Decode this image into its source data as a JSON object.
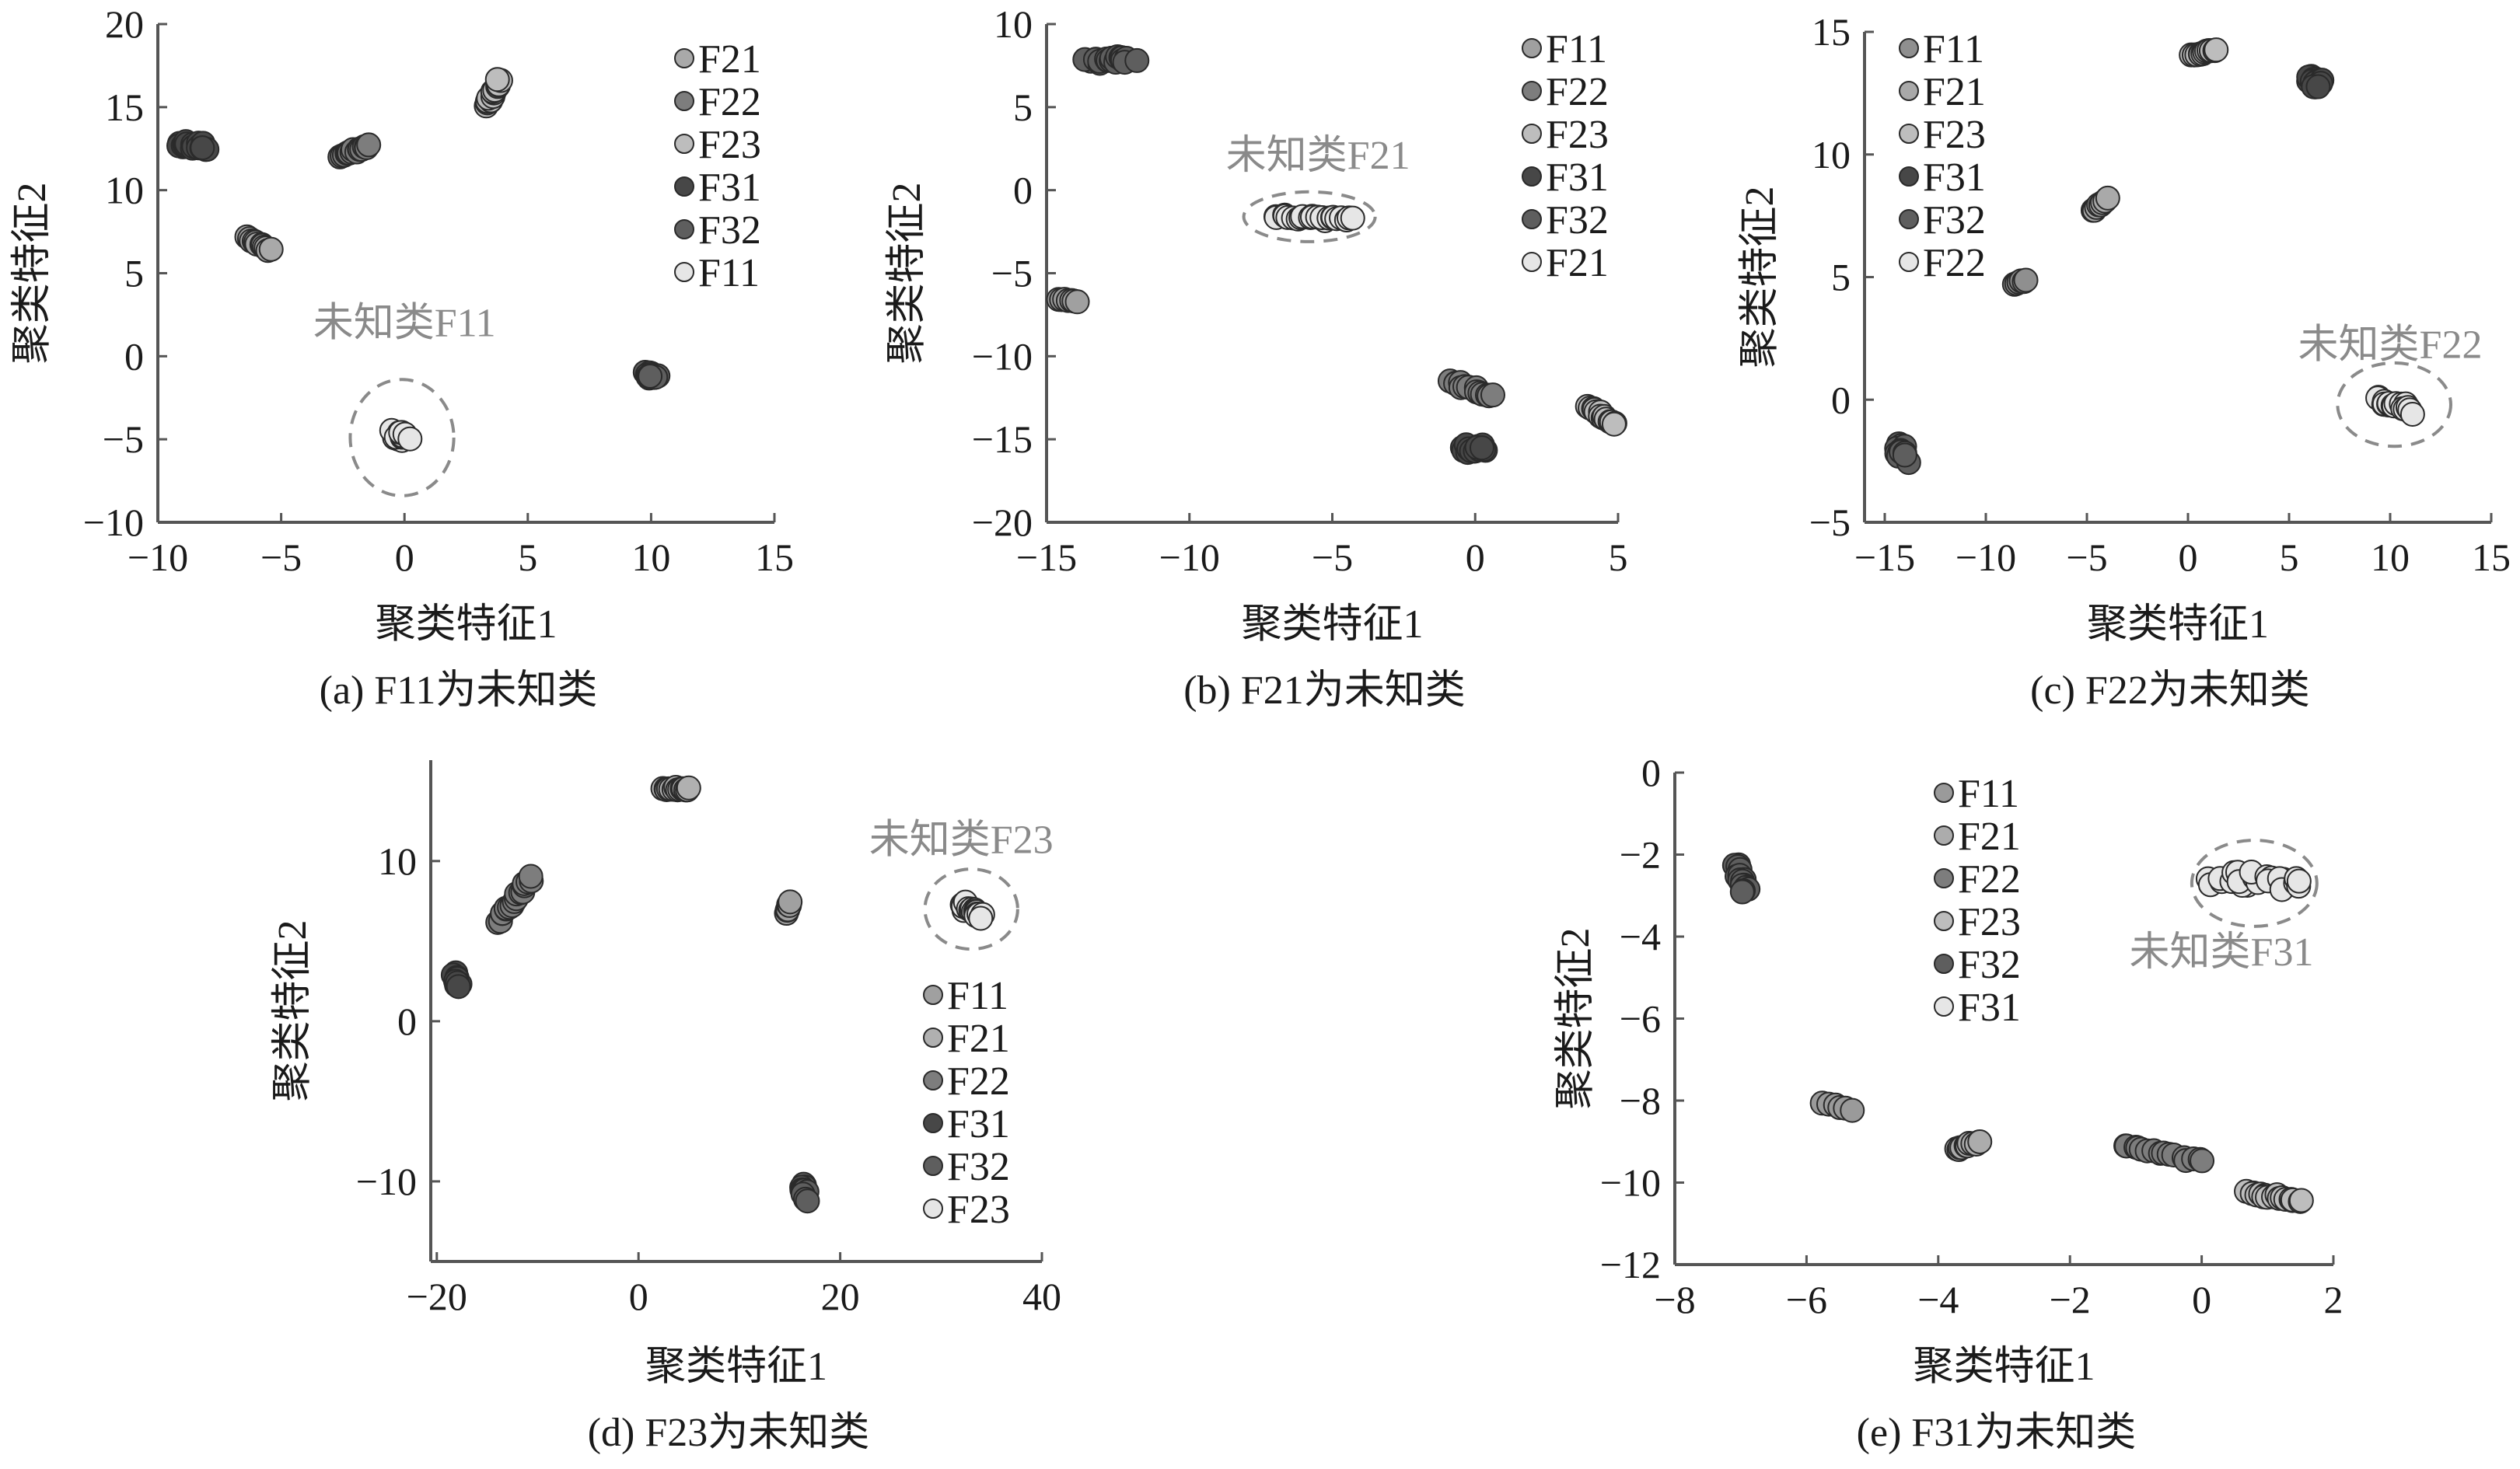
{
  "chart_data": [
    {
      "type": "scatter",
      "caption": "(a)  F11为未知类",
      "xlabel": "聚类特征1",
      "ylabel": "聚类特征2",
      "xlim": [
        -10,
        15
      ],
      "ylim": [
        -10,
        20
      ],
      "xticks": [
        -10,
        -5,
        0,
        5,
        10,
        15
      ],
      "yticks": [
        -10,
        -5,
        0,
        5,
        10,
        15,
        20
      ],
      "legend_placement": "top-right",
      "annotation": {
        "text": "未知类F11",
        "at": [
          0,
          1.2
        ],
        "ellipse_center": [
          -0.1,
          -4.9
        ],
        "ellipse_radii": [
          2.1,
          3.5
        ]
      },
      "series": [
        {
          "name": "F21",
          "color": "#a9a9a9",
          "from": [
            -6.4,
            7.1
          ],
          "to": [
            -5.4,
            6.4
          ],
          "jitter": 0.15,
          "n": 12
        },
        {
          "name": "F22",
          "color": "#7d7d7d",
          "from": [
            -2.6,
            12.0
          ],
          "to": [
            -1.4,
            12.7
          ],
          "jitter": 0.15,
          "n": 16
        },
        {
          "name": "F23",
          "color": "#bdbdbd",
          "from": [
            3.3,
            15.1
          ],
          "to": [
            3.9,
            16.6
          ],
          "jitter": 0.2,
          "n": 14
        },
        {
          "name": "F31",
          "color": "#474747",
          "from": [
            -9.2,
            12.8
          ],
          "to": [
            -8.0,
            12.6
          ],
          "jitter": 0.25,
          "n": 20
        },
        {
          "name": "F32",
          "color": "#5e5e5e",
          "from": [
            10.0,
            -1.1
          ],
          "to": [
            10.0,
            -1.2
          ],
          "jitter": 0.3,
          "n": 18
        },
        {
          "name": "F11",
          "color": "#e6e6e6",
          "from": [
            -0.3,
            -4.7
          ],
          "to": [
            0.1,
            -5.0
          ],
          "jitter": 0.45,
          "n": 20
        }
      ]
    },
    {
      "type": "scatter",
      "caption": "(b)  F21为未知类",
      "xlabel": "聚类特征1",
      "ylabel": "聚类特征2",
      "xlim": [
        -15,
        5
      ],
      "ylim": [
        -20,
        10
      ],
      "xticks": [
        -15,
        -10,
        -5,
        0,
        5
      ],
      "yticks": [
        -20,
        -15,
        -10,
        -5,
        0,
        5,
        10
      ],
      "legend_placement": "top-right",
      "annotation": {
        "text": "未知类F21",
        "at": [
          -5.5,
          1.3
        ],
        "ellipse_center": [
          -5.8,
          -1.6
        ],
        "ellipse_radii": [
          2.3,
          1.5
        ]
      },
      "series": [
        {
          "name": "F11",
          "color": "#a0a0a0",
          "from": [
            -14.6,
            -6.6
          ],
          "to": [
            -13.9,
            -6.7
          ],
          "jitter": 0.08,
          "n": 7
        },
        {
          "name": "F22",
          "color": "#7d7d7d",
          "from": [
            -0.9,
            -11.5
          ],
          "to": [
            0.6,
            -12.4
          ],
          "jitter": 0.18,
          "n": 16
        },
        {
          "name": "F23",
          "color": "#bdbdbd",
          "from": [
            4.0,
            -13.0
          ],
          "to": [
            4.9,
            -14.1
          ],
          "jitter": 0.12,
          "n": 14
        },
        {
          "name": "F31",
          "color": "#474747",
          "from": [
            -0.4,
            -15.5
          ],
          "to": [
            0.2,
            -15.6
          ],
          "jitter": 0.35,
          "n": 20
        },
        {
          "name": "F32",
          "color": "#5e5e5e",
          "from": [
            -13.5,
            7.8
          ],
          "to": [
            -12.0,
            7.9
          ],
          "jitter": 0.3,
          "n": 20
        },
        {
          "name": "F21",
          "color": "#e6e6e6",
          "from": [
            -7.0,
            -1.6
          ],
          "to": [
            -4.3,
            -1.7
          ],
          "jitter": 0.2,
          "n": 24
        }
      ]
    },
    {
      "type": "scatter",
      "caption": "(c)  F22为未知类",
      "xlabel": "聚类特征1",
      "ylabel": "聚类特征2",
      "xlim": [
        -16,
        15
      ],
      "ylim": [
        -5,
        15
      ],
      "xticks": [
        -15,
        -10,
        -5,
        0,
        5,
        10,
        15
      ],
      "yticks": [
        -5,
        0,
        5,
        10,
        15
      ],
      "legend_placement": "top-left",
      "annotation": {
        "text": "未知类F22",
        "at": [
          10,
          1.7
        ],
        "ellipse_center": [
          10.2,
          -0.2
        ],
        "ellipse_radii": [
          2.8,
          1.7
        ]
      },
      "series": [
        {
          "name": "F11",
          "color": "#8f8f8f",
          "from": [
            -8.6,
            4.7
          ],
          "to": [
            -8.0,
            4.9
          ],
          "jitter": 0.05,
          "n": 6
        },
        {
          "name": "F21",
          "color": "#a9a9a9",
          "from": [
            -4.7,
            7.7
          ],
          "to": [
            -4.0,
            8.2
          ],
          "jitter": 0.08,
          "n": 8
        },
        {
          "name": "F23",
          "color": "#bdbdbd",
          "from": [
            0.2,
            14.0
          ],
          "to": [
            1.4,
            14.3
          ],
          "jitter": 0.1,
          "n": 12
        },
        {
          "name": "F31",
          "color": "#474747",
          "from": [
            6.0,
            13.1
          ],
          "to": [
            6.5,
            12.8
          ],
          "jitter": 0.3,
          "n": 20
        },
        {
          "name": "F32",
          "color": "#5e5e5e",
          "from": [
            -14.3,
            -1.8
          ],
          "to": [
            -14.0,
            -2.4
          ],
          "jitter": 0.35,
          "n": 20
        },
        {
          "name": "F22",
          "color": "#e6e6e6",
          "from": [
            9.4,
            0.0
          ],
          "to": [
            11.0,
            -0.4
          ],
          "jitter": 0.3,
          "n": 20
        }
      ]
    },
    {
      "type": "scatter",
      "caption": "(d)  F23为未知类",
      "xlabel": "聚类特征1",
      "ylabel": "聚类特征2",
      "xlim": [
        -20.6,
        40
      ],
      "ylim": [
        -15,
        16.3
      ],
      "xticks": [
        -20,
        0,
        20,
        40
      ],
      "yticks": [
        -10,
        0,
        10
      ],
      "legend_placement": "bottom-right",
      "annotation": {
        "text": "未知类F23",
        "at": [
          32,
          10.5
        ],
        "ellipse_center": [
          33,
          7.0
        ],
        "ellipse_radii": [
          4.6,
          2.5
        ]
      },
      "series": [
        {
          "name": "F11",
          "color": "#a0a0a0",
          "from": [
            14.7,
            6.7
          ],
          "to": [
            15.0,
            7.5
          ],
          "jitter": 0.15,
          "n": 6
        },
        {
          "name": "F21",
          "color": "#b0b0b0",
          "from": [
            2.5,
            14.5
          ],
          "to": [
            5.0,
            14.5
          ],
          "jitter": 0.15,
          "n": 14
        },
        {
          "name": "F22",
          "color": "#7d7d7d",
          "from": [
            -14.0,
            6.2
          ],
          "to": [
            -10.5,
            9.0
          ],
          "jitter": 0.25,
          "n": 18
        },
        {
          "name": "F31",
          "color": "#474747",
          "from": [
            -18.2,
            2.8
          ],
          "to": [
            -17.8,
            2.2
          ],
          "jitter": 0.35,
          "n": 16
        },
        {
          "name": "F32",
          "color": "#5e5e5e",
          "from": [
            16.3,
            -10.3
          ],
          "to": [
            16.6,
            -11.0
          ],
          "jitter": 0.3,
          "n": 16
        },
        {
          "name": "F23",
          "color": "#e6e6e6",
          "from": [
            32.0,
            7.3
          ],
          "to": [
            34.0,
            6.6
          ],
          "jitter": 0.4,
          "n": 20
        }
      ]
    },
    {
      "type": "scatter",
      "caption": "(e)  F31为未知类",
      "xlabel": "聚类特征1",
      "ylabel": "聚类特征2",
      "xlim": [
        -8,
        2
      ],
      "ylim": [
        -12,
        0
      ],
      "xticks": [
        -8,
        -6,
        -4,
        -2,
        0,
        2
      ],
      "yticks": [
        -12,
        -10,
        -8,
        -6,
        -4,
        -2,
        0
      ],
      "legend_placement": "top-center",
      "annotation": {
        "text": "未知类F31",
        "at": [
          0.3,
          -4.7
        ],
        "ellipse_center": [
          0.8,
          -2.7
        ],
        "ellipse_radii": [
          0.95,
          1.05
        ]
      },
      "series": [
        {
          "name": "F11",
          "color": "#9a9a9a",
          "from": [
            -5.75,
            -8.05
          ],
          "to": [
            -5.3,
            -8.25
          ],
          "jitter": 0.04,
          "n": 6
        },
        {
          "name": "F21",
          "color": "#acacac",
          "from": [
            -3.75,
            -9.2
          ],
          "to": [
            -3.4,
            -9.0
          ],
          "jitter": 0.06,
          "n": 10
        },
        {
          "name": "F22",
          "color": "#7d7d7d",
          "from": [
            -1.2,
            -9.1
          ],
          "to": [
            0.0,
            -9.5
          ],
          "jitter": 0.08,
          "n": 16
        },
        {
          "name": "F23",
          "color": "#bdbdbd",
          "from": [
            0.7,
            -10.25
          ],
          "to": [
            1.5,
            -10.45
          ],
          "jitter": 0.08,
          "n": 18
        },
        {
          "name": "F32",
          "color": "#5e5e5e",
          "from": [
            -7.05,
            -2.3
          ],
          "to": [
            -6.95,
            -2.9
          ],
          "jitter": 0.1,
          "n": 18
        },
        {
          "name": "F31",
          "color": "#e6e6e6",
          "from": [
            0.15,
            -2.6
          ],
          "to": [
            1.45,
            -2.7
          ],
          "jitter": 0.3,
          "n": 24
        }
      ]
    }
  ]
}
